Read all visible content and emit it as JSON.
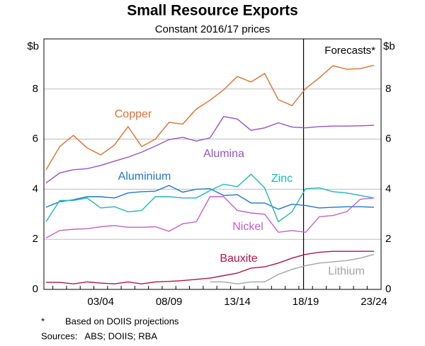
{
  "chart_data": {
    "type": "line",
    "title": "Small Resource Exports",
    "subtitle": "Constant 2016/17 prices",
    "y_unit": "$b",
    "y2_unit": "$b",
    "annotation": "Forecasts*",
    "forecast_from": "18/19",
    "footnote_marker": "*",
    "footnote": "Based on DOIIS projections",
    "sources": "Sources:   ABS; DOIIS; RBA",
    "categories": [
      null,
      null,
      null,
      null,
      "03/04",
      null,
      null,
      null,
      null,
      "08/09",
      null,
      null,
      null,
      null,
      "13/14",
      null,
      null,
      null,
      null,
      "18/19",
      null,
      null,
      null,
      null,
      "23/24"
    ],
    "ylim": [
      0,
      10
    ],
    "yticks": [
      0,
      2,
      4,
      6,
      8
    ],
    "y2lim": [
      0,
      10
    ],
    "y2ticks": [
      0,
      2,
      4,
      6,
      8
    ],
    "grid": true,
    "series": [
      {
        "name": "Copper",
        "color": "#d9712f",
        "values": [
          4.77,
          5.7,
          6.15,
          5.65,
          5.37,
          5.76,
          6.5,
          5.7,
          6.0,
          6.67,
          6.6,
          7.2,
          7.55,
          7.97,
          8.5,
          8.28,
          8.62,
          7.57,
          7.34,
          8.02,
          8.45,
          8.93,
          8.79,
          8.81,
          8.95
        ]
      },
      {
        "name": "Alumina",
        "color": "#9454c4",
        "values": [
          4.25,
          4.65,
          4.78,
          4.82,
          4.95,
          5.12,
          5.28,
          5.48,
          5.72,
          5.98,
          6.07,
          5.92,
          6.05,
          6.9,
          6.8,
          6.35,
          6.45,
          6.65,
          6.48,
          6.45,
          6.5,
          6.52,
          6.52,
          6.53,
          6.55
        ]
      },
      {
        "name": "Aluminium",
        "color": "#1f77c8",
        "values": [
          3.28,
          3.5,
          3.58,
          3.7,
          3.7,
          3.65,
          3.85,
          3.9,
          3.92,
          4.15,
          3.88,
          4.0,
          4.02,
          3.75,
          3.78,
          3.45,
          3.45,
          3.2,
          3.4,
          3.35,
          3.25,
          3.28,
          3.3,
          3.3,
          3.28
        ]
      },
      {
        "name": "Zinc",
        "color": "#22b4b4",
        "values": [
          2.7,
          3.55,
          3.55,
          3.65,
          3.25,
          3.3,
          3.1,
          3.15,
          3.7,
          3.7,
          3.65,
          3.65,
          3.95,
          4.2,
          4.1,
          4.6,
          4.05,
          2.7,
          3.1,
          4.02,
          4.05,
          3.9,
          3.85,
          3.75,
          3.65
        ]
      },
      {
        "name": "Nickel",
        "color": "#c45ec8",
        "values": [
          2.05,
          2.35,
          2.4,
          2.42,
          2.5,
          2.55,
          2.48,
          2.48,
          2.5,
          2.32,
          2.62,
          2.7,
          3.7,
          3.7,
          3.15,
          3.05,
          3.0,
          2.28,
          2.35,
          2.28,
          2.9,
          2.95,
          3.1,
          3.6,
          3.65
        ]
      },
      {
        "name": "Bauxite",
        "color": "#b0124c",
        "values": [
          0.28,
          0.28,
          0.22,
          0.3,
          0.25,
          0.22,
          0.3,
          0.22,
          0.3,
          0.32,
          0.35,
          0.4,
          0.45,
          0.55,
          0.65,
          0.85,
          0.9,
          1.05,
          1.25,
          1.4,
          1.48,
          1.52,
          1.52,
          1.52,
          1.52
        ]
      },
      {
        "name": "Lithium",
        "color": "#a3a3a3",
        "values": [
          null,
          null,
          null,
          null,
          null,
          null,
          null,
          null,
          null,
          null,
          null,
          null,
          0.3,
          0.3,
          0.22,
          0.3,
          0.3,
          0.6,
          0.8,
          0.95,
          1.05,
          1.1,
          1.15,
          1.25,
          1.4
        ]
      }
    ]
  }
}
